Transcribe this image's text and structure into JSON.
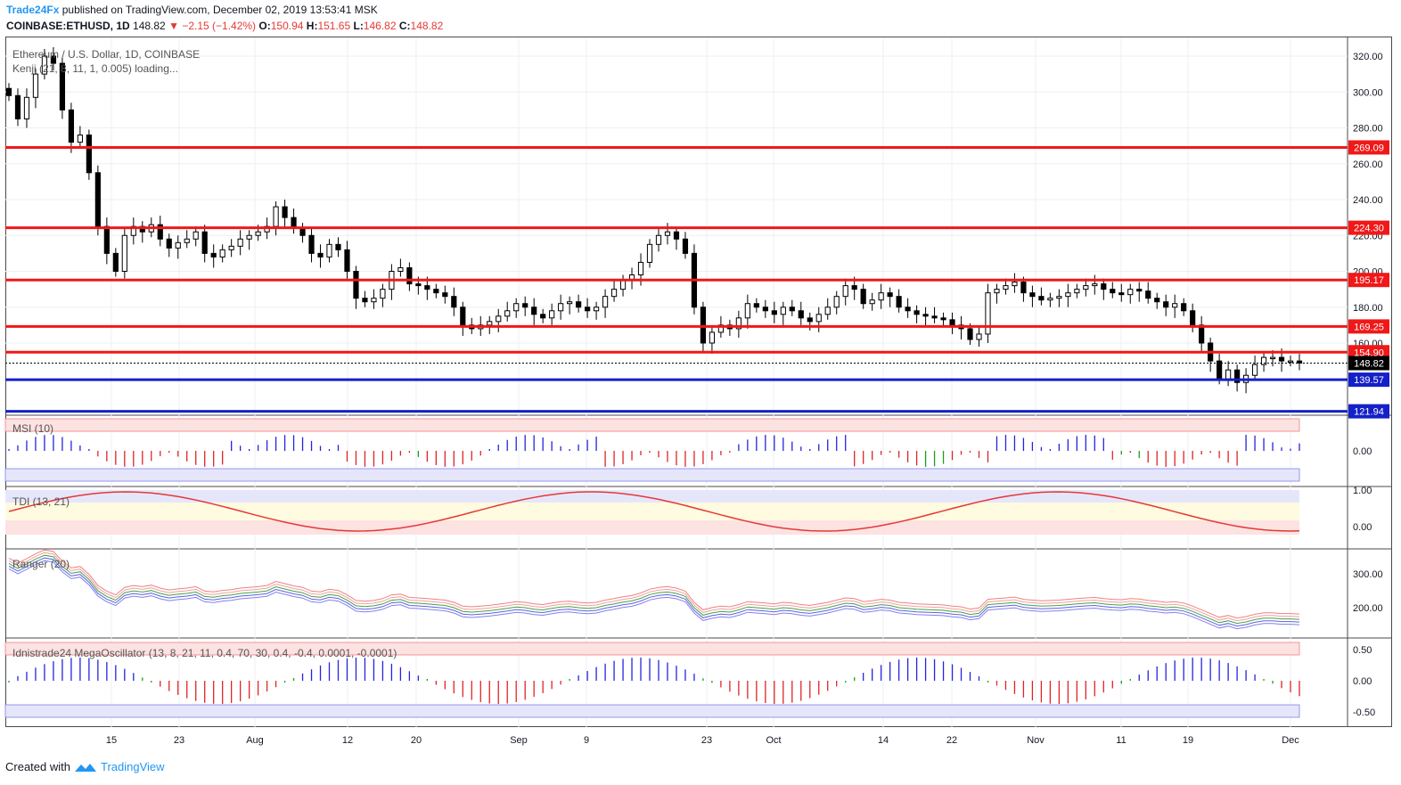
{
  "header": {
    "publisher": "Trade24Fx",
    "published_text": "published on TradingView.com, December 02, 2019 13:53:41 MSK",
    "symbol": "COINBASE:ETHUSD, 1D",
    "last": "148.82",
    "change": "−2.15 (−1.42%)",
    "o_label": "O:",
    "o": "150.94",
    "h_label": "H:",
    "h": "151.65",
    "l_label": "L:",
    "l": "146.82",
    "c_label": "C:",
    "c": "148.82"
  },
  "legend": {
    "main_title": "Ethereum / U.S. Dollar, 1D, COINBASE",
    "kenji": "Kenji (21, 8, 11, 1, 0.005) loading...",
    "msi": "MSI (10)",
    "tdi": "TDI (13, 21)",
    "ranger": "Ranger (20)",
    "mega": "Idnistrade24 MegaOscillator (13, 8, 21, 11, 0.4, 70, 30, 0.4, -0.4, 0.0001, -0.0001)"
  },
  "colors": {
    "level_red": "#f01818",
    "level_blue": "#1420c8",
    "accent": "#2196f3",
    "down": "#e53935"
  },
  "chart_data": {
    "type": "candlestick",
    "price_axis": {
      "ticks": [
        "320.00",
        "300.00",
        "280.00",
        "260.00",
        "240.00",
        "220.00",
        "200.00",
        "180.00",
        "160.00"
      ],
      "ylim": [
        120,
        330
      ]
    },
    "levels_red": [
      "269.09",
      "224.30",
      "195.17",
      "169.25",
      "154.90"
    ],
    "levels_blue": [
      "139.57",
      "121.94"
    ],
    "last_price": "148.82",
    "x_ticks": [
      "15",
      "23",
      "Aug",
      "12",
      "20",
      "Sep",
      "9",
      "23",
      "Oct",
      "14",
      "22",
      "Nov",
      "11",
      "19",
      "Dec"
    ],
    "closes": [
      298,
      285,
      297,
      310,
      320,
      316,
      290,
      272,
      276,
      255,
      225,
      210,
      200,
      220,
      225,
      222,
      226,
      218,
      213,
      216,
      218,
      222,
      210,
      208,
      212,
      214,
      218,
      220,
      222,
      225,
      236,
      230,
      224,
      220,
      210,
      208,
      215,
      212,
      200,
      185,
      183,
      185,
      190,
      200,
      202,
      193,
      192,
      190,
      188,
      186,
      180,
      170,
      168,
      170,
      172,
      175,
      178,
      182,
      180,
      176,
      174,
      178,
      182,
      183,
      180,
      178,
      180,
      186,
      190,
      195,
      198,
      205,
      215,
      220,
      222,
      218,
      210,
      180,
      160,
      166,
      170,
      168,
      174,
      182,
      180,
      178,
      176,
      180,
      178,
      174,
      172,
      176,
      180,
      186,
      192,
      190,
      182,
      184,
      188,
      186,
      180,
      178,
      176,
      175,
      174,
      173,
      170,
      168,
      162,
      165,
      188,
      190,
      192,
      194,
      188,
      186,
      184,
      185,
      186,
      188,
      190,
      192,
      193,
      190,
      188,
      187,
      190,
      189,
      185,
      183,
      180,
      182,
      178,
      170,
      160,
      150,
      140,
      145,
      138,
      142,
      148,
      152,
      152,
      150,
      150,
      148.82
    ],
    "msi_axis": [
      "0.00"
    ],
    "tdi_axis": [
      "1.00",
      "0.00"
    ],
    "ranger_axis": [
      "300.00",
      "200.00"
    ],
    "mega_axis": [
      "0.50",
      "0.00",
      "-0.50"
    ]
  }
}
